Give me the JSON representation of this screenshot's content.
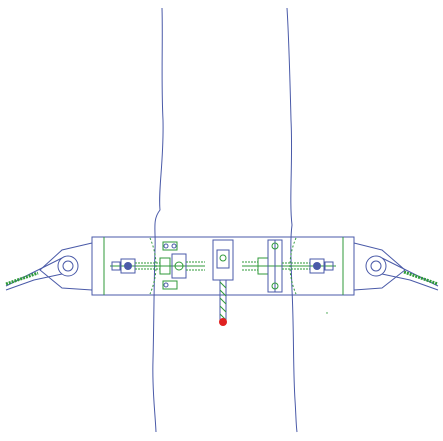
{
  "drawing": {
    "labels": [],
    "colors": {
      "background": "#ffffff",
      "outline": "#4a5aa8",
      "hardware": "#2f9a3a",
      "marker": "#e02020"
    }
  }
}
